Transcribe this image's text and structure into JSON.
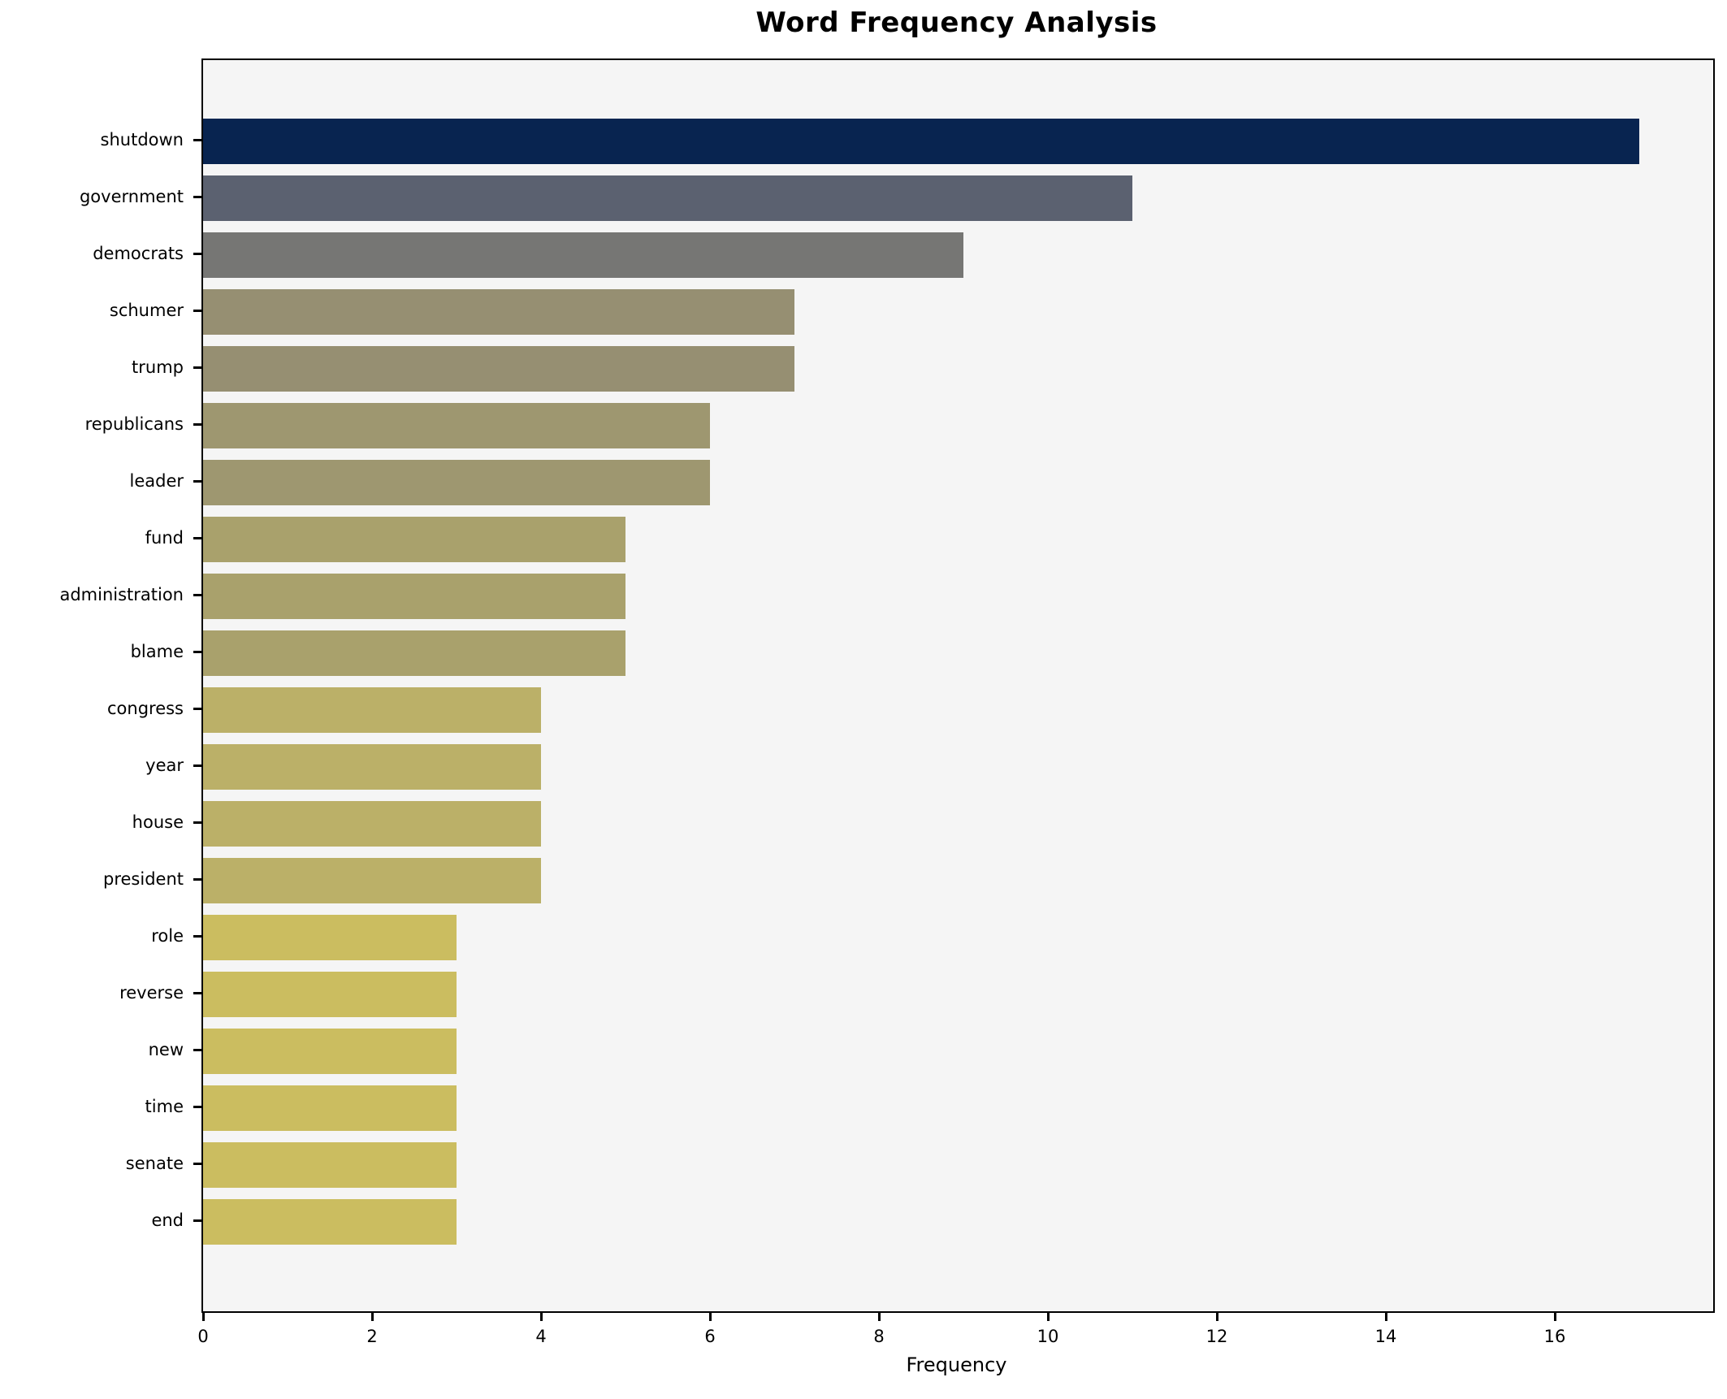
{
  "title": "Word Frequency Analysis",
  "chart_data": {
    "type": "bar",
    "orientation": "horizontal",
    "title": "Word Frequency Analysis",
    "xlabel": "Frequency",
    "ylabel": "",
    "categories": [
      "shutdown",
      "government",
      "democrats",
      "schumer",
      "trump",
      "republicans",
      "leader",
      "fund",
      "administration",
      "blame",
      "congress",
      "year",
      "house",
      "president",
      "role",
      "reverse",
      "new",
      "time",
      "senate",
      "end"
    ],
    "values": [
      17,
      11,
      9,
      7,
      7,
      6,
      6,
      5,
      5,
      5,
      4,
      4,
      4,
      4,
      3,
      3,
      3,
      3,
      3,
      3
    ],
    "bar_colors": [
      "#082450",
      "#5b6170",
      "#767674",
      "#968f72",
      "#968f72",
      "#9e9770",
      "#9e9770",
      "#a9a16c",
      "#a9a16c",
      "#a9a16c",
      "#bbb068",
      "#bbb068",
      "#bbb068",
      "#bbb068",
      "#cbbd60",
      "#cbbd60",
      "#cbbd60",
      "#cbbd60",
      "#cbbd60",
      "#cbbd60"
    ],
    "xlim": [
      0,
      17.87
    ],
    "xticks": [
      0,
      2,
      4,
      6,
      8,
      10,
      12,
      14,
      16
    ],
    "grid": false,
    "legend": null,
    "plot_bg": "#f5f5f5",
    "figure_bg": "#ffffff",
    "spine_color": "#000000"
  }
}
